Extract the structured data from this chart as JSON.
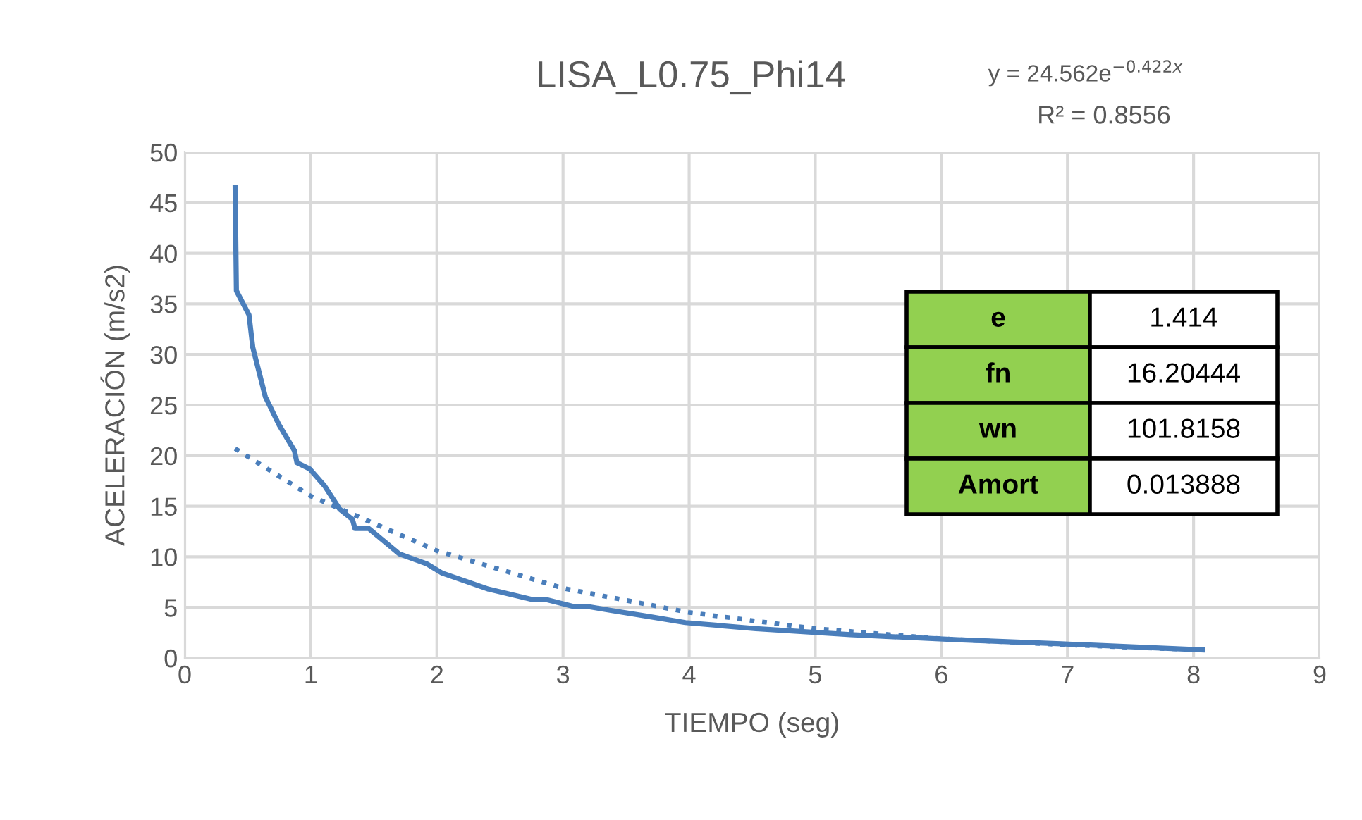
{
  "chart_data": {
    "type": "line",
    "title": "LISA_L0.75_Phi14",
    "xlabel": "TIEMPO (seg)",
    "ylabel": "ACELERACIÓN (m/s2)",
    "xlim": [
      0,
      9
    ],
    "xticks": [
      0,
      1,
      2,
      3,
      4,
      5,
      6,
      7,
      8,
      9
    ],
    "ylim": [
      0,
      50
    ],
    "yticks": [
      0,
      5,
      10,
      15,
      20,
      25,
      30,
      35,
      40,
      45,
      50
    ],
    "grid": true,
    "series": [
      {
        "color": "#4a7ebb",
        "line_style": "solid",
        "x": [
          0.4,
          0.41,
          0.51,
          0.54,
          0.64,
          0.75,
          0.87,
          0.89,
          0.99,
          1.11,
          1.23,
          1.33,
          1.35,
          1.46,
          1.7,
          1.92,
          2.04,
          2.41,
          2.75,
          2.86,
          3.08,
          3.19,
          3.38,
          3.68,
          3.97,
          4.53,
          5.28,
          6.13,
          6.95,
          7.7,
          8.07
        ],
        "values": [
          46.5,
          36.3,
          33.9,
          30.7,
          25.8,
          23.0,
          20.5,
          19.3,
          18.7,
          17.0,
          14.7,
          13.7,
          12.8,
          12.8,
          10.3,
          9.3,
          8.4,
          6.8,
          5.8,
          5.8,
          5.1,
          5.1,
          4.7,
          4.1,
          3.5,
          2.9,
          2.3,
          1.8,
          1.4,
          1.0,
          0.8
        ]
      },
      {
        "color": "#4a7ebb",
        "line_style": "dotted",
        "x": [
          0.4,
          1,
          2,
          3,
          4,
          5,
          6,
          7,
          8.05
        ],
        "values": [
          20.7,
          16,
          10.6,
          6.9,
          4.5,
          2.9,
          1.9,
          1.3,
          0.8
        ]
      }
    ],
    "annotations": [
      "y = 24.562e$^{−0.422x}$",
      "R² = 0.8556",
      "e",
      "1.414",
      "fn",
      "16.20444",
      "wn",
      "101.8158",
      "Amort",
      "0.013888"
    ]
  }
}
